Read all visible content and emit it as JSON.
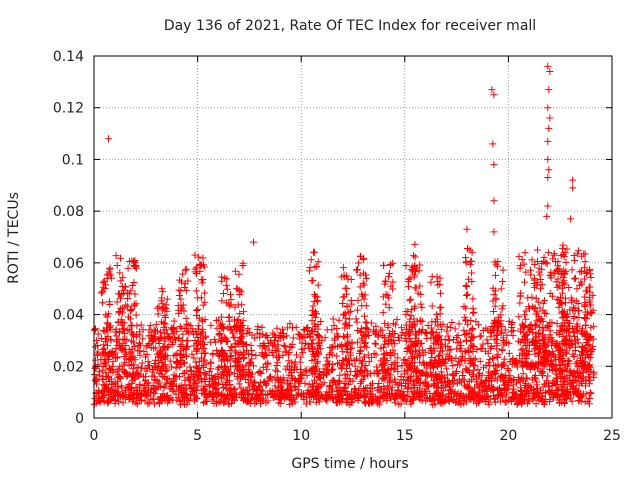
{
  "chart_data": {
    "type": "scatter",
    "title": "Day 136 of 2021, Rate Of TEC Index for receiver mall",
    "xlabel": "GPS time / hours",
    "ylabel": "ROTI / TECUs",
    "xlim": [
      0,
      25
    ],
    "ylim": [
      0,
      0.14
    ],
    "xticks": [
      0,
      5,
      10,
      15,
      20,
      25
    ],
    "yticks": [
      0,
      0.02,
      0.04,
      0.06,
      0.08,
      0.1,
      0.12,
      0.14
    ],
    "xtick_labels": [
      "0",
      "5",
      "10",
      "15",
      "20",
      "25"
    ],
    "ytick_labels": [
      "0",
      "0.02",
      "0.04",
      "0.06",
      "0.08",
      "0.1",
      "0.12",
      "0.14"
    ],
    "grid": true,
    "marker": "+",
    "color": "#ff0000",
    "series": [
      {
        "name": "ROTI",
        "description": "dense scatter of ROTI samples from 0 to 24 h; bulk between 0.005 and 0.03 TECU/min",
        "notable_points": [
          {
            "x": 0.7,
            "y": 0.108
          },
          {
            "x": 7.7,
            "y": 0.068
          },
          {
            "x": 18.0,
            "y": 0.073
          },
          {
            "x": 19.2,
            "y": 0.127
          },
          {
            "x": 19.3,
            "y": 0.125
          },
          {
            "x": 19.25,
            "y": 0.106
          },
          {
            "x": 19.3,
            "y": 0.098
          },
          {
            "x": 19.3,
            "y": 0.084
          },
          {
            "x": 19.3,
            "y": 0.072
          },
          {
            "x": 21.9,
            "y": 0.136
          },
          {
            "x": 22.0,
            "y": 0.134
          },
          {
            "x": 21.95,
            "y": 0.127
          },
          {
            "x": 21.9,
            "y": 0.12
          },
          {
            "x": 22.0,
            "y": 0.116
          },
          {
            "x": 21.95,
            "y": 0.112
          },
          {
            "x": 21.9,
            "y": 0.107
          },
          {
            "x": 21.9,
            "y": 0.1
          },
          {
            "x": 21.95,
            "y": 0.096
          },
          {
            "x": 21.9,
            "y": 0.093
          },
          {
            "x": 21.9,
            "y": 0.082
          },
          {
            "x": 21.85,
            "y": 0.078
          },
          {
            "x": 23.1,
            "y": 0.092
          },
          {
            "x": 23.1,
            "y": 0.089
          },
          {
            "x": 23.0,
            "y": 0.077
          }
        ],
        "bursts": [
          {
            "x": 0.6,
            "peak": 0.059
          },
          {
            "x": 1.3,
            "peak": 0.065
          },
          {
            "x": 1.8,
            "peak": 0.061
          },
          {
            "x": 3.3,
            "peak": 0.052
          },
          {
            "x": 4.3,
            "peak": 0.058
          },
          {
            "x": 5.1,
            "peak": 0.063
          },
          {
            "x": 6.4,
            "peak": 0.055
          },
          {
            "x": 7.0,
            "peak": 0.06
          },
          {
            "x": 10.6,
            "peak": 0.065
          },
          {
            "x": 12.2,
            "peak": 0.059
          },
          {
            "x": 12.9,
            "peak": 0.063
          },
          {
            "x": 14.2,
            "peak": 0.06
          },
          {
            "x": 15.3,
            "peak": 0.06
          },
          {
            "x": 15.6,
            "peak": 0.068
          },
          {
            "x": 16.5,
            "peak": 0.055
          },
          {
            "x": 18.1,
            "peak": 0.066
          },
          {
            "x": 19.5,
            "peak": 0.062
          },
          {
            "x": 21.5,
            "peak": 0.062
          },
          {
            "x": 22.6,
            "peak": 0.067
          },
          {
            "x": 23.9,
            "peak": 0.058
          }
        ]
      }
    ]
  }
}
